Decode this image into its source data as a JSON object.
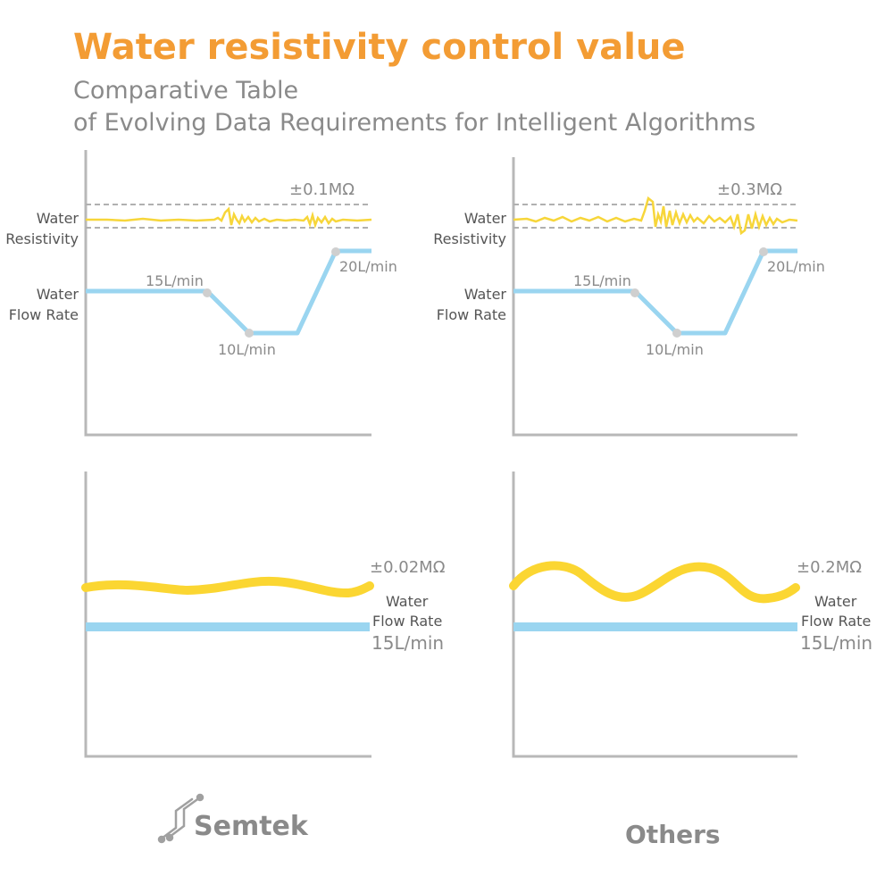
{
  "title": "Water resistivity control value",
  "subtitle_line1": "Comparative Table",
  "subtitle_line2": "of Evolving Data Requirements for Intelligent Algorithms",
  "labels": {
    "water_resistivity_1": "Water",
    "water_resistivity_2": "Resistivity",
    "water_flow_rate_1": "Water",
    "water_flow_rate_2": "Flow Rate"
  },
  "brands": {
    "left": "Semtek",
    "right": "Others"
  },
  "colors": {
    "title": "#f39c34",
    "resistivity": "#f7d63a",
    "flow": "#9ad5f0",
    "axis": "#b8b8b8",
    "text": "#8a8a8a"
  },
  "chart_data": [
    {
      "type": "line",
      "panel": "top-left",
      "tolerance_label": "±0.1MΩ",
      "flow_points": [
        {
          "label": "15L/min",
          "value": 15
        },
        {
          "label": "10L/min",
          "value": 10
        },
        {
          "label": "20L/min",
          "value": 20
        }
      ]
    },
    {
      "type": "line",
      "panel": "top-right",
      "tolerance_label": "±0.3MΩ",
      "flow_points": [
        {
          "label": "15L/min",
          "value": 15
        },
        {
          "label": "10L/min",
          "value": 10
        },
        {
          "label": "20L/min",
          "value": 20
        }
      ]
    },
    {
      "type": "line",
      "panel": "bottom-left",
      "tolerance_label": "±0.02MΩ",
      "flow_label": "15L/min"
    },
    {
      "type": "line",
      "panel": "bottom-right",
      "tolerance_label": "±0.2MΩ",
      "flow_label": "15L/min"
    }
  ]
}
